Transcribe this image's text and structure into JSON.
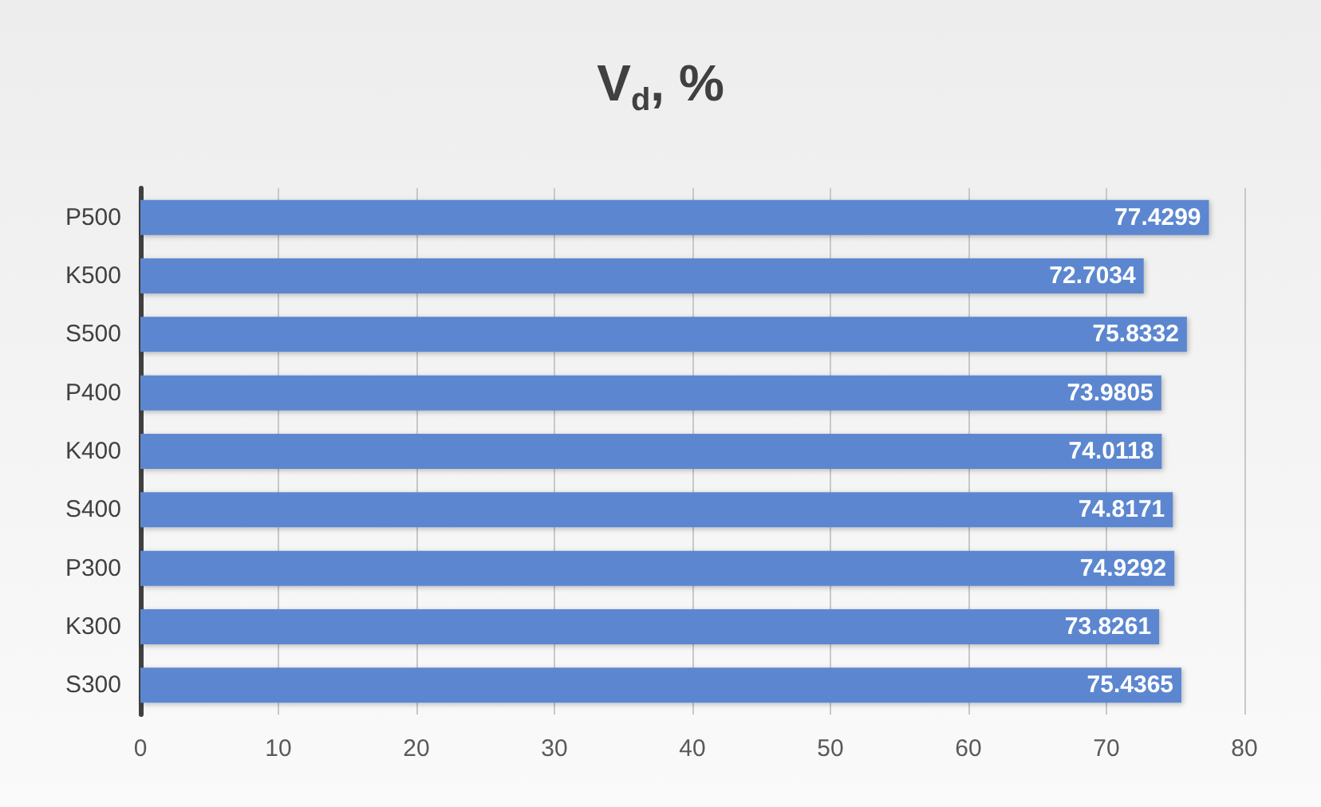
{
  "chart_data": {
    "type": "bar",
    "orientation": "horizontal",
    "title": "V$_{d}$, %",
    "categories": [
      "P500",
      "K500",
      "S500",
      "P400",
      "K400",
      "S400",
      "P300",
      "K300",
      "S300"
    ],
    "values": [
      77.4299,
      72.7034,
      75.8332,
      73.9805,
      74.0118,
      74.8171,
      74.9292,
      73.8261,
      75.4365
    ],
    "color": "#5b87d0",
    "xlim": [
      0,
      80
    ],
    "xticks": [
      0,
      10,
      20,
      30,
      40,
      50,
      60,
      70,
      80
    ],
    "grid": "x",
    "data_labels": true
  }
}
